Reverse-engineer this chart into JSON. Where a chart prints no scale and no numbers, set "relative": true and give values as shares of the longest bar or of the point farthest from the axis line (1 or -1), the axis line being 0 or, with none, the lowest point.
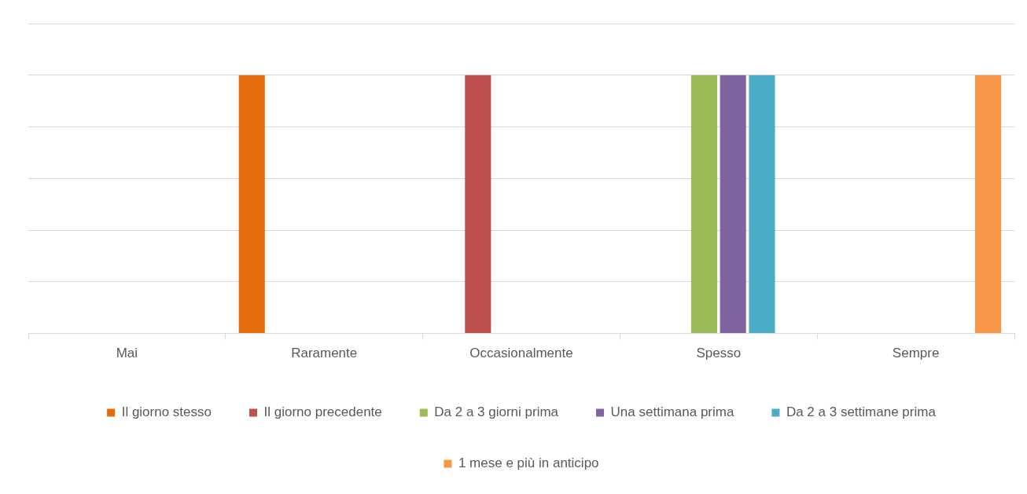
{
  "chart_data": {
    "type": "bar",
    "relative": true,
    "grid": "y",
    "legend": "bottom",
    "categories": [
      "Mai",
      "Raramente",
      "Occasionalmente",
      "Spesso",
      "Sempre"
    ],
    "series": [
      {
        "name": "Il giorno stesso",
        "color": "#e46c0a",
        "values": [
          null,
          1,
          null,
          null,
          null
        ]
      },
      {
        "name": "Il giorno precedente",
        "color": "#c0504d",
        "values": [
          null,
          null,
          1,
          null,
          null
        ]
      },
      {
        "name": "Da 2 a 3 giorni prima",
        "color": "#9bbb59",
        "values": [
          null,
          null,
          null,
          1,
          null
        ]
      },
      {
        "name": "Una settimana prima",
        "color": "#8064a2",
        "values": [
          null,
          null,
          null,
          1,
          null
        ]
      },
      {
        "name": "Da 2 a 3 settimane prima",
        "color": "#4bacc6",
        "values": [
          null,
          null,
          null,
          1,
          null
        ]
      },
      {
        "name": "1 mese e più in anticipo",
        "color": "#f79646",
        "values": [
          null,
          null,
          null,
          null,
          1
        ]
      }
    ]
  }
}
